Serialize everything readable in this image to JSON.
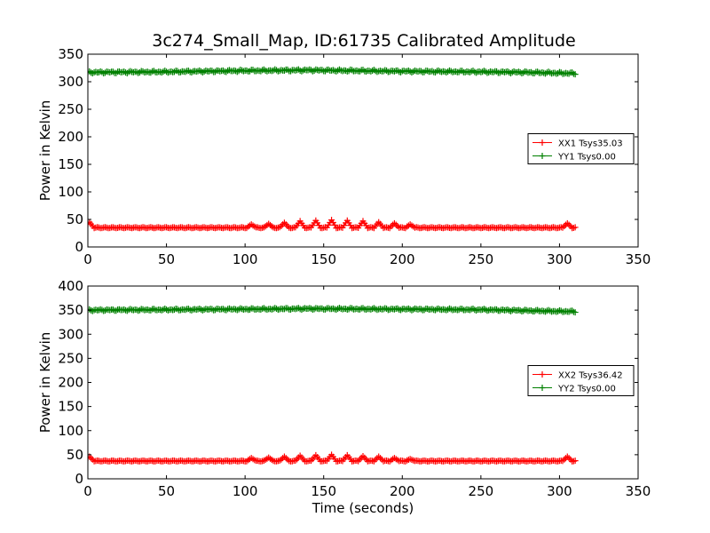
{
  "figure_title": "3c274_Small_Map, ID:61735 Calibrated Amplitude",
  "chart_data": [
    {
      "type": "line",
      "title": "3c274_Small_Map, ID:61735 Calibrated Amplitude",
      "xlabel": "",
      "ylabel": "Power in Kelvin",
      "xlim": [
        0,
        350
      ],
      "ylim": [
        0,
        350
      ],
      "xticks": [
        0,
        50,
        100,
        150,
        200,
        250,
        300,
        350
      ],
      "yticks": [
        0,
        50,
        100,
        150,
        200,
        250,
        300,
        350
      ],
      "grid": false,
      "legend_position": "center-right",
      "series": [
        {
          "name": "XX1 Tsys35.03",
          "color": "#ff0000",
          "marker": "plus",
          "x_start": 0,
          "x_end": 310,
          "x_step": 1,
          "baseline": 35,
          "spikes": [
            [
              1,
              45
            ],
            [
              104,
              41
            ],
            [
              115,
              42
            ],
            [
              125,
              44
            ],
            [
              135,
              47
            ],
            [
              145,
              48
            ],
            [
              155,
              49
            ],
            [
              165,
              48
            ],
            [
              175,
              47
            ],
            [
              185,
              45
            ],
            [
              195,
              43
            ],
            [
              205,
              41
            ],
            [
              305,
              43
            ]
          ]
        },
        {
          "name": "YY1 Tsys0.00",
          "color": "#008000",
          "marker": "plus",
          "x_start": 0,
          "x_end": 310,
          "x_step": 1,
          "profile": [
            [
              0,
              317
            ],
            [
              50,
              318
            ],
            [
              100,
              320
            ],
            [
              140,
              321
            ],
            [
              200,
              319
            ],
            [
              250,
              318
            ],
            [
              280,
              317
            ],
            [
              310,
              315
            ]
          ]
        }
      ]
    },
    {
      "type": "line",
      "title": "",
      "xlabel": "Time (seconds)",
      "ylabel": "Power in Kelvin",
      "xlim": [
        0,
        350
      ],
      "ylim": [
        0,
        400
      ],
      "xticks": [
        0,
        50,
        100,
        150,
        200,
        250,
        300,
        350
      ],
      "yticks": [
        0,
        50,
        100,
        150,
        200,
        250,
        300,
        350,
        400
      ],
      "grid": false,
      "legend_position": "center-right",
      "series": [
        {
          "name": "XX2 Tsys36.42",
          "color": "#ff0000",
          "marker": "plus",
          "x_start": 0,
          "x_end": 310,
          "x_step": 1,
          "baseline": 37,
          "spikes": [
            [
              1,
              46
            ],
            [
              104,
              43
            ],
            [
              115,
              44
            ],
            [
              125,
              46
            ],
            [
              135,
              48
            ],
            [
              145,
              49
            ],
            [
              155,
              50
            ],
            [
              165,
              49
            ],
            [
              175,
              47
            ],
            [
              185,
              46
            ],
            [
              195,
              43
            ],
            [
              205,
              41
            ],
            [
              305,
              46
            ]
          ]
        },
        {
          "name": "YY2 Tsys0.00",
          "color": "#008000",
          "marker": "plus",
          "x_start": 0,
          "x_end": 310,
          "x_step": 1,
          "profile": [
            [
              0,
              350
            ],
            [
              50,
              351
            ],
            [
              100,
              352
            ],
            [
              140,
              353
            ],
            [
              200,
              352
            ],
            [
              250,
              351
            ],
            [
              280,
              349
            ],
            [
              310,
              347
            ]
          ]
        }
      ]
    }
  ]
}
